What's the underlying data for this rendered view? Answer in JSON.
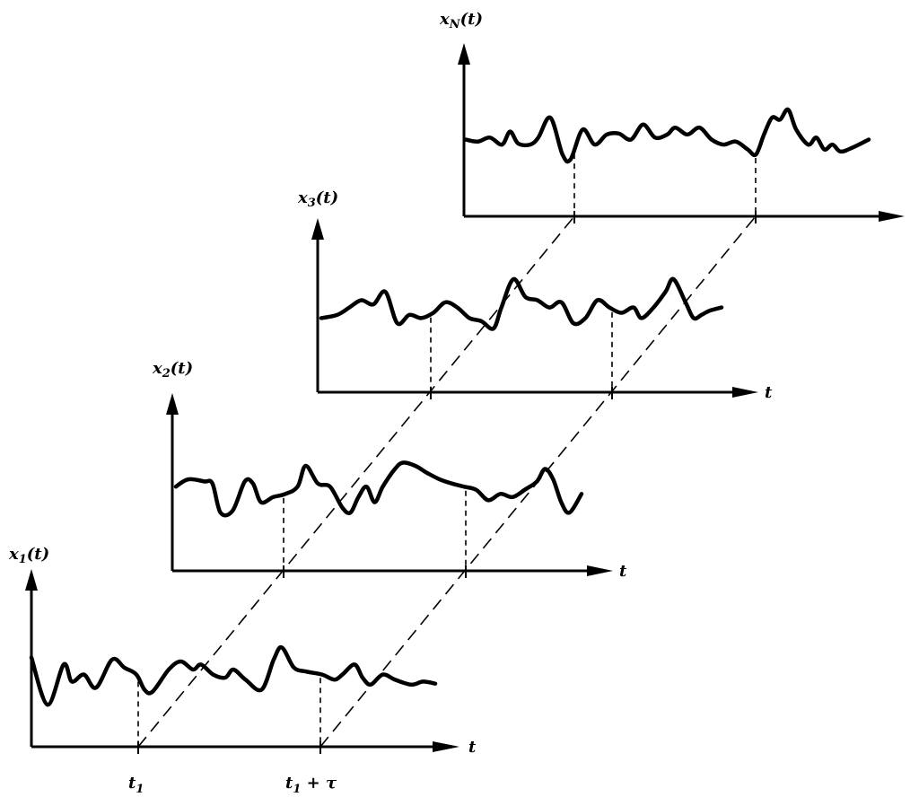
{
  "diagram": {
    "panels": [
      {
        "id": "x1",
        "y_label": {
          "base": "x",
          "sub": "1",
          "arg": "(t)"
        },
        "x_label": "t",
        "trace": [
          [
            0,
            0.62
          ],
          [
            0.04,
            0.15
          ],
          [
            0.08,
            0.55
          ],
          [
            0.1,
            0.38
          ],
          [
            0.13,
            0.45
          ],
          [
            0.16,
            0.32
          ],
          [
            0.2,
            0.6
          ],
          [
            0.23,
            0.52
          ],
          [
            0.26,
            0.45
          ],
          [
            0.28,
            0.3
          ],
          [
            0.3,
            0.28
          ],
          [
            0.34,
            0.5
          ],
          [
            0.37,
            0.58
          ],
          [
            0.4,
            0.5
          ],
          [
            0.42,
            0.55
          ],
          [
            0.45,
            0.45
          ],
          [
            0.48,
            0.42
          ],
          [
            0.5,
            0.5
          ],
          [
            0.53,
            0.4
          ],
          [
            0.57,
            0.3
          ],
          [
            0.6,
            0.6
          ],
          [
            0.62,
            0.72
          ],
          [
            0.65,
            0.52
          ],
          [
            0.68,
            0.48
          ],
          [
            0.72,
            0.45
          ],
          [
            0.75,
            0.4
          ],
          [
            0.77,
            0.45
          ],
          [
            0.8,
            0.55
          ],
          [
            0.82,
            0.42
          ],
          [
            0.84,
            0.35
          ],
          [
            0.87,
            0.45
          ],
          [
            0.9,
            0.4
          ],
          [
            0.94,
            0.35
          ],
          [
            0.97,
            0.38
          ],
          [
            1,
            0.36
          ]
        ]
      },
      {
        "id": "x2",
        "y_label": {
          "base": "x",
          "sub": "2",
          "arg": "(t)"
        },
        "x_label": "t",
        "trace": [
          [
            0,
            0.55
          ],
          [
            0.03,
            0.62
          ],
          [
            0.07,
            0.6
          ],
          [
            0.09,
            0.58
          ],
          [
            0.11,
            0.3
          ],
          [
            0.14,
            0.32
          ],
          [
            0.17,
            0.6
          ],
          [
            0.19,
            0.58
          ],
          [
            0.21,
            0.4
          ],
          [
            0.24,
            0.45
          ],
          [
            0.27,
            0.48
          ],
          [
            0.3,
            0.55
          ],
          [
            0.32,
            0.75
          ],
          [
            0.35,
            0.58
          ],
          [
            0.38,
            0.55
          ],
          [
            0.41,
            0.35
          ],
          [
            0.43,
            0.3
          ],
          [
            0.45,
            0.45
          ],
          [
            0.47,
            0.55
          ],
          [
            0.49,
            0.4
          ],
          [
            0.51,
            0.55
          ],
          [
            0.54,
            0.72
          ],
          [
            0.56,
            0.78
          ],
          [
            0.59,
            0.75
          ],
          [
            0.62,
            0.68
          ],
          [
            0.65,
            0.62
          ],
          [
            0.68,
            0.58
          ],
          [
            0.71,
            0.55
          ],
          [
            0.74,
            0.52
          ],
          [
            0.77,
            0.42
          ],
          [
            0.8,
            0.48
          ],
          [
            0.83,
            0.45
          ],
          [
            0.86,
            0.52
          ],
          [
            0.89,
            0.6
          ],
          [
            0.91,
            0.72
          ],
          [
            0.93,
            0.62
          ],
          [
            0.95,
            0.4
          ],
          [
            0.97,
            0.3
          ],
          [
            1,
            0.48
          ]
        ]
      },
      {
        "id": "x3",
        "y_label": {
          "base": "x",
          "sub": "3",
          "arg": "(t)"
        },
        "x_label": "t",
        "trace": [
          [
            0,
            0.45
          ],
          [
            0.04,
            0.48
          ],
          [
            0.07,
            0.55
          ],
          [
            0.1,
            0.62
          ],
          [
            0.13,
            0.58
          ],
          [
            0.16,
            0.7
          ],
          [
            0.19,
            0.4
          ],
          [
            0.22,
            0.48
          ],
          [
            0.25,
            0.45
          ],
          [
            0.28,
            0.5
          ],
          [
            0.31,
            0.6
          ],
          [
            0.34,
            0.55
          ],
          [
            0.37,
            0.45
          ],
          [
            0.4,
            0.42
          ],
          [
            0.43,
            0.35
          ],
          [
            0.45,
            0.55
          ],
          [
            0.48,
            0.82
          ],
          [
            0.51,
            0.65
          ],
          [
            0.54,
            0.62
          ],
          [
            0.57,
            0.55
          ],
          [
            0.6,
            0.6
          ],
          [
            0.63,
            0.4
          ],
          [
            0.66,
            0.45
          ],
          [
            0.69,
            0.62
          ],
          [
            0.72,
            0.55
          ],
          [
            0.75,
            0.5
          ],
          [
            0.78,
            0.55
          ],
          [
            0.8,
            0.45
          ],
          [
            0.83,
            0.55
          ],
          [
            0.86,
            0.7
          ],
          [
            0.88,
            0.82
          ],
          [
            0.91,
            0.6
          ],
          [
            0.93,
            0.45
          ],
          [
            0.95,
            0.48
          ],
          [
            0.97,
            0.52
          ],
          [
            1,
            0.55
          ]
        ]
      },
      {
        "id": "xN",
        "y_label": {
          "base": "x",
          "sub": "N",
          "arg": "(t)"
        },
        "x_label": "",
        "trace": [
          [
            0,
            0.5
          ],
          [
            0.03,
            0.48
          ],
          [
            0.06,
            0.52
          ],
          [
            0.09,
            0.45
          ],
          [
            0.11,
            0.58
          ],
          [
            0.13,
            0.46
          ],
          [
            0.16,
            0.45
          ],
          [
            0.18,
            0.52
          ],
          [
            0.21,
            0.72
          ],
          [
            0.24,
            0.35
          ],
          [
            0.26,
            0.3
          ],
          [
            0.29,
            0.6
          ],
          [
            0.32,
            0.45
          ],
          [
            0.35,
            0.55
          ],
          [
            0.38,
            0.56
          ],
          [
            0.41,
            0.5
          ],
          [
            0.44,
            0.65
          ],
          [
            0.47,
            0.52
          ],
          [
            0.5,
            0.55
          ],
          [
            0.52,
            0.62
          ],
          [
            0.55,
            0.55
          ],
          [
            0.58,
            0.62
          ],
          [
            0.61,
            0.5
          ],
          [
            0.64,
            0.45
          ],
          [
            0.67,
            0.48
          ],
          [
            0.7,
            0.4
          ],
          [
            0.72,
            0.35
          ],
          [
            0.74,
            0.55
          ],
          [
            0.76,
            0.72
          ],
          [
            0.78,
            0.7
          ],
          [
            0.8,
            0.8
          ],
          [
            0.82,
            0.6
          ],
          [
            0.85,
            0.45
          ],
          [
            0.87,
            0.52
          ],
          [
            0.89,
            0.4
          ],
          [
            0.91,
            0.45
          ],
          [
            0.93,
            0.38
          ],
          [
            0.96,
            0.42
          ],
          [
            1,
            0.5
          ]
        ]
      }
    ],
    "time_labels": {
      "t1": {
        "base": "t",
        "sub": "1",
        "suffix": ""
      },
      "t1_tau": {
        "base": "t",
        "sub": "1",
        "suffix": " + τ"
      }
    }
  }
}
